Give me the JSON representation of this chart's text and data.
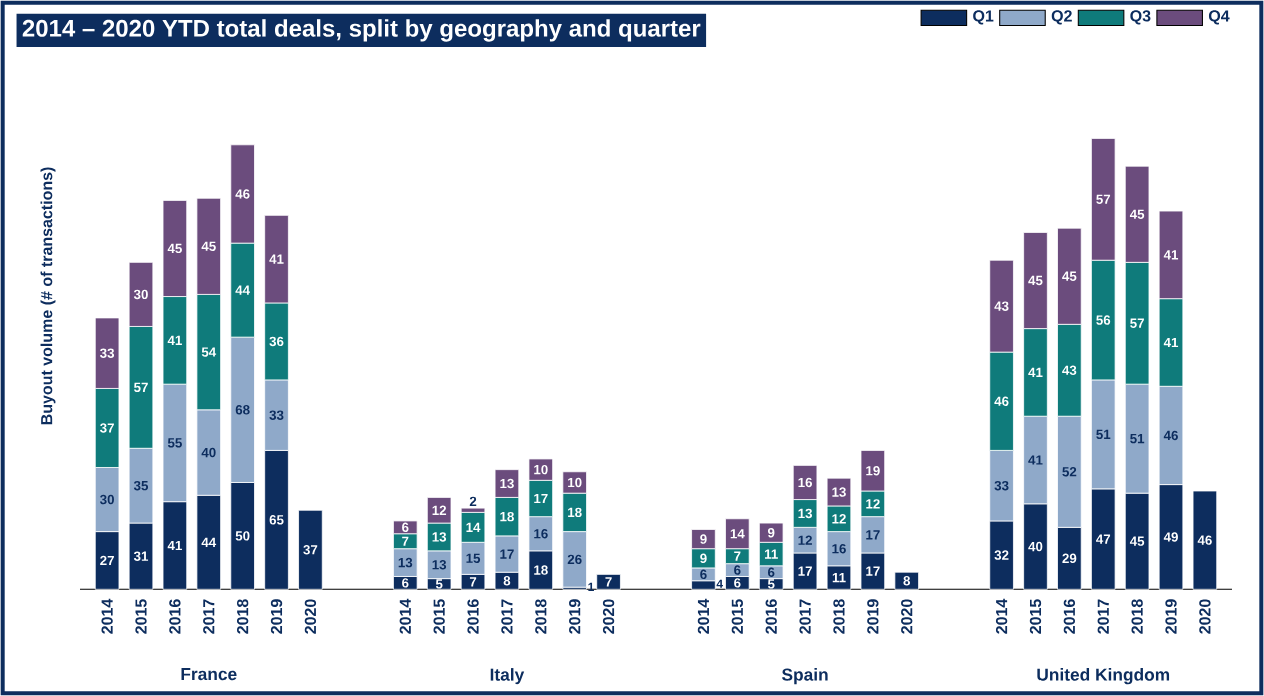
{
  "chart_data": {
    "type": "bar",
    "stacked": true,
    "data_labels": true,
    "legend": "top right",
    "title": "2014 – 2020 YTD total deals, split by geography and quarter",
    "ylabel": "Buyout volume (# of transactions)",
    "annotations": [
      "France",
      "Italy",
      "Spain",
      "United Kingdom"
    ],
    "categories": [
      "2014",
      "2015",
      "2016",
      "2017",
      "2018",
      "2019",
      "2020",
      "2014",
      "2015",
      "2016",
      "2017",
      "2018",
      "2019",
      "2020",
      "2014",
      "2015",
      "2016",
      "2017",
      "2018",
      "2019",
      "2020",
      "2014",
      "2015",
      "2016",
      "2017",
      "2018",
      "2019",
      "2020"
    ],
    "series": [
      {
        "name": "Q1",
        "color": "#0d2d5e",
        "values": [
          27,
          31,
          41,
          44,
          50,
          65,
          37,
          6,
          5,
          7,
          8,
          18,
          1,
          7,
          4,
          6,
          5,
          17,
          11,
          17,
          8,
          32,
          40,
          29,
          47,
          45,
          49,
          46
        ]
      },
      {
        "name": "Q2",
        "color": "#8fa9c9",
        "values": [
          30,
          35,
          55,
          40,
          68,
          33,
          null,
          13,
          13,
          15,
          17,
          16,
          26,
          null,
          6,
          6,
          6,
          12,
          16,
          17,
          null,
          33,
          41,
          52,
          51,
          51,
          46,
          null
        ]
      },
      {
        "name": "Q3",
        "color": "#0f7b7b",
        "values": [
          37,
          57,
          41,
          54,
          44,
          36,
          null,
          7,
          13,
          14,
          18,
          17,
          18,
          null,
          9,
          7,
          11,
          13,
          12,
          12,
          null,
          46,
          41,
          43,
          56,
          57,
          41,
          null
        ]
      },
      {
        "name": "Q4",
        "color": "#6b4c7d",
        "values": [
          33,
          30,
          45,
          45,
          46,
          41,
          null,
          6,
          12,
          2,
          13,
          10,
          10,
          null,
          9,
          14,
          9,
          16,
          13,
          19,
          null,
          43,
          45,
          45,
          57,
          45,
          41,
          null
        ]
      }
    ]
  }
}
